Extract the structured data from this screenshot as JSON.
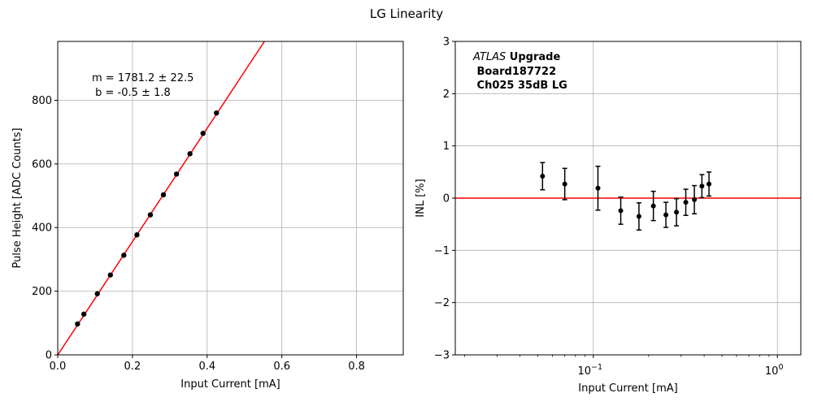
{
  "figure_title": "LG Linearity",
  "chart_data": [
    {
      "type": "scatter",
      "title": "",
      "xlabel": "Input Current [mA]",
      "ylabel": "Pulse Height [ADC Counts]",
      "xlim": [
        0,
        0.925
      ],
      "ylim": [
        0,
        985
      ],
      "x_ticks": [
        0.0,
        0.2,
        0.4,
        0.6,
        0.8
      ],
      "x_tick_labels": [
        "0.0",
        "0.2",
        "0.4",
        "0.6",
        "0.8"
      ],
      "y_ticks": [
        0,
        200,
        400,
        600,
        800
      ],
      "y_tick_labels": [
        "0",
        "200",
        "400",
        "600",
        "800"
      ],
      "grid": true,
      "series": [
        {
          "color": "#000000",
          "x": [
            0.053,
            0.07,
            0.106,
            0.141,
            0.177,
            0.212,
            0.248,
            0.283,
            0.318,
            0.354,
            0.389,
            0.425
          ],
          "y": [
            97,
            128,
            192,
            251,
            313,
            377,
            440,
            503,
            568,
            632,
            696,
            760
          ]
        }
      ],
      "fit_line": {
        "color": "#ff0000",
        "slope": 1781.2,
        "intercept": -0.5
      },
      "annotation": [
        "m = 1781.2 ± 22.5",
        " b = -0.5 ± 1.8"
      ]
    },
    {
      "type": "scatter",
      "title": "",
      "xlabel": "Input Current [mA]",
      "ylabel": "INL [%]",
      "xscale": "log",
      "xlim": [
        0.0178,
        1.34
      ],
      "ylim": [
        -3,
        3
      ],
      "x_ticks": [
        0.1,
        1.0
      ],
      "x_tick_labels": [
        [
          "10",
          "−1"
        ],
        [
          "10",
          "0"
        ]
      ],
      "y_ticks": [
        -3,
        -2,
        -1,
        0,
        1,
        2,
        3
      ],
      "y_tick_labels": [
        "−3",
        "−2",
        "−1",
        "0",
        "1",
        "2",
        "3"
      ],
      "grid": true,
      "series": [
        {
          "color": "#000000",
          "x": [
            0.053,
            0.07,
            0.106,
            0.141,
            0.177,
            0.212,
            0.248,
            0.283,
            0.318,
            0.354,
            0.389,
            0.425
          ],
          "y": [
            0.42,
            0.27,
            0.19,
            -0.24,
            -0.35,
            -0.15,
            -0.32,
            -0.27,
            -0.08,
            -0.03,
            0.23,
            0.27
          ],
          "err": [
            0.26,
            0.3,
            0.42,
            0.26,
            0.26,
            0.28,
            0.24,
            0.26,
            0.25,
            0.27,
            0.22,
            0.23
          ]
        }
      ],
      "reference_line": {
        "y": 0,
        "color": "#ff0000"
      },
      "annotation": {
        "italic": "ATLAS",
        "bold_suffix": " Upgrade",
        "lines": [
          " Board187722",
          " Ch025 35dB LG"
        ]
      }
    }
  ]
}
